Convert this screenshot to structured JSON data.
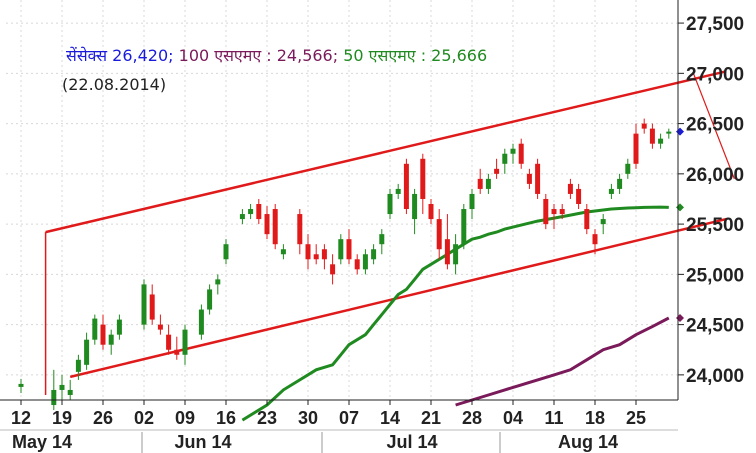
{
  "legend": {
    "sensex_label": "सेंसेक्स 26,420;",
    "ma100_label": "100 एसएमए : 24,566;",
    "ma50_label": "50 एसएमए : 25,666",
    "date": "(22.08.2014)"
  },
  "colors": {
    "sensex": "#1a1adb",
    "ma100": "#7a1a5a",
    "ma50": "#1f8a1f",
    "up_candle": "#1f8a1f",
    "down_candle": "#e01a1a",
    "channel": "#e01a1a",
    "axis": "#222222"
  },
  "chart_data": {
    "type": "candlestick",
    "y_ticks": [
      "27,500",
      "27,000",
      "26,500",
      "26,000",
      "25,500",
      "25,000",
      "24,500",
      "24,000"
    ],
    "y_tick_values": [
      27500,
      27000,
      26500,
      26000,
      25500,
      25000,
      24500,
      24000
    ],
    "ylim": [
      23750,
      27650
    ],
    "x_ticks": [
      "12",
      "19",
      "26",
      "02",
      "09",
      "16",
      "23",
      "30",
      "07",
      "14",
      "21",
      "28",
      "04",
      "11",
      "18",
      "25"
    ],
    "month_labels": [
      "May 14",
      "Jun 14",
      "Jul 14",
      "Aug 14"
    ],
    "price_markers": [
      {
        "series": "sensex",
        "value": 26420
      },
      {
        "series": "ma50",
        "value": 25666
      },
      {
        "series": "ma100",
        "value": 24566
      }
    ],
    "candles": [
      [
        0,
        23880,
        23960,
        23820,
        23910
      ],
      [
        4,
        23700,
        24050,
        23650,
        23850
      ],
      [
        5,
        23850,
        24000,
        23750,
        23900
      ],
      [
        6,
        23800,
        23950,
        23750,
        23850
      ],
      [
        7,
        24030,
        24200,
        23950,
        24150
      ],
      [
        8,
        24100,
        24420,
        24050,
        24350
      ],
      [
        9,
        24350,
        24600,
        24300,
        24560
      ],
      [
        10,
        24500,
        24600,
        24250,
        24300
      ],
      [
        11,
        24300,
        24450,
        24200,
        24400
      ],
      [
        12,
        24400,
        24600,
        24350,
        24550
      ],
      [
        15,
        24500,
        24950,
        24450,
        24900
      ],
      [
        16,
        24800,
        24900,
        24500,
        24550
      ],
      [
        17,
        24500,
        24600,
        24400,
        24450
      ],
      [
        18,
        24400,
        24500,
        24200,
        24250
      ],
      [
        19,
        24250,
        24380,
        24150,
        24200
      ],
      [
        20,
        24200,
        24500,
        24100,
        24450
      ],
      [
        22,
        24400,
        24700,
        24350,
        24650
      ],
      [
        23,
        24650,
        24900,
        24600,
        24850
      ],
      [
        24,
        24900,
        25000,
        24800,
        24950
      ],
      [
        25,
        25150,
        25350,
        25100,
        25300
      ],
      [
        27,
        25550,
        25650,
        25500,
        25600
      ],
      [
        28,
        25600,
        25700,
        25550,
        25650
      ],
      [
        29,
        25700,
        25750,
        25500,
        25550
      ],
      [
        30,
        25600,
        25680,
        25350,
        25400
      ],
      [
        31,
        25650,
        25700,
        25250,
        25300
      ],
      [
        32,
        25200,
        25300,
        25150,
        25250
      ],
      [
        34,
        25600,
        25650,
        25200,
        25300
      ],
      [
        35,
        25300,
        25400,
        25050,
        25150
      ],
      [
        36,
        25200,
        25300,
        25100,
        25150
      ],
      [
        37,
        25250,
        25300,
        25050,
        25150
      ],
      [
        38,
        25100,
        25200,
        24900,
        25000
      ],
      [
        39,
        25150,
        25400,
        25100,
        25350
      ],
      [
        40,
        25350,
        25450,
        25100,
        25150
      ],
      [
        41,
        25150,
        25200,
        25000,
        25050
      ],
      [
        42,
        25050,
        25250,
        25000,
        25200
      ],
      [
        43,
        25150,
        25300,
        25100,
        25250
      ],
      [
        44,
        25300,
        25450,
        25200,
        25400
      ],
      [
        45,
        25600,
        25850,
        25550,
        25800
      ],
      [
        46,
        25800,
        25900,
        25750,
        25850
      ],
      [
        47,
        26100,
        26150,
        25600,
        25650
      ],
      [
        48,
        25550,
        25850,
        25400,
        25800
      ],
      [
        49,
        26150,
        26200,
        25600,
        25750
      ],
      [
        50,
        25700,
        25750,
        25500,
        25550
      ],
      [
        51,
        25550,
        25650,
        25150,
        25250
      ],
      [
        52,
        25350,
        25600,
        25050,
        25100
      ],
      [
        53,
        25100,
        25400,
        25000,
        25300
      ],
      [
        54,
        25300,
        25700,
        25250,
        25650
      ],
      [
        55,
        25650,
        25850,
        25550,
        25800
      ],
      [
        56,
        25950,
        26050,
        25800,
        25850
      ],
      [
        57,
        25850,
        26000,
        25800,
        25950
      ],
      [
        58,
        26050,
        26150,
        25950,
        26000
      ],
      [
        59,
        26100,
        26250,
        26000,
        26200
      ],
      [
        60,
        26200,
        26300,
        26100,
        26250
      ],
      [
        61,
        26300,
        26350,
        26050,
        26100
      ],
      [
        62,
        26000,
        26050,
        25850,
        25900
      ],
      [
        63,
        26100,
        26150,
        25750,
        25800
      ],
      [
        64,
        25750,
        25800,
        25450,
        25500
      ],
      [
        65,
        25650,
        25700,
        25450,
        25600
      ],
      [
        66,
        25650,
        25700,
        25550,
        25600
      ],
      [
        67,
        25900,
        25950,
        25750,
        25800
      ],
      [
        68,
        25850,
        25900,
        25650,
        25700
      ],
      [
        69,
        25650,
        25700,
        25400,
        25450
      ],
      [
        70,
        25400,
        25450,
        25200,
        25300
      ],
      [
        71,
        25500,
        25600,
        25400,
        25550
      ],
      [
        72,
        25800,
        25900,
        25750,
        25850
      ],
      [
        73,
        25850,
        26000,
        25800,
        25950
      ],
      [
        74,
        26000,
        26150,
        25950,
        26100
      ],
      [
        75,
        26400,
        26500,
        26050,
        26100
      ],
      [
        76,
        26500,
        26550,
        26400,
        26450
      ],
      [
        77,
        26450,
        26500,
        26250,
        26300
      ],
      [
        78,
        26300,
        26400,
        26250,
        26350
      ],
      [
        79,
        26400,
        26450,
        26350,
        26420
      ]
    ],
    "ma50": [
      [
        27,
        23550
      ],
      [
        30,
        23700
      ],
      [
        32,
        23850
      ],
      [
        34,
        23950
      ],
      [
        36,
        24050
      ],
      [
        38,
        24100
      ],
      [
        39,
        24200
      ],
      [
        40,
        24300
      ],
      [
        41,
        24350
      ],
      [
        42,
        24400
      ],
      [
        43,
        24500
      ],
      [
        44,
        24600
      ],
      [
        45,
        24700
      ],
      [
        46,
        24800
      ],
      [
        47,
        24850
      ],
      [
        48,
        24950
      ],
      [
        49,
        25050
      ],
      [
        50,
        25100
      ],
      [
        51,
        25150
      ],
      [
        52,
        25200
      ],
      [
        53,
        25250
      ],
      [
        54,
        25300
      ],
      [
        55,
        25350
      ],
      [
        56,
        25370
      ],
      [
        57,
        25400
      ],
      [
        58,
        25420
      ],
      [
        59,
        25450
      ],
      [
        60,
        25470
      ],
      [
        61,
        25490
      ],
      [
        62,
        25510
      ],
      [
        63,
        25530
      ],
      [
        64,
        25545
      ],
      [
        65,
        25560
      ],
      [
        66,
        25575
      ],
      [
        67,
        25590
      ],
      [
        68,
        25605
      ],
      [
        69,
        25620
      ],
      [
        70,
        25630
      ],
      [
        71,
        25640
      ],
      [
        72,
        25650
      ],
      [
        73,
        25655
      ],
      [
        74,
        25660
      ],
      [
        75,
        25663
      ],
      [
        76,
        25666
      ],
      [
        77,
        25668
      ],
      [
        78,
        25669
      ],
      [
        79,
        25666
      ]
    ],
    "ma100": [
      [
        53,
        23700
      ],
      [
        55,
        23750
      ],
      [
        57,
        23800
      ],
      [
        59,
        23850
      ],
      [
        61,
        23900
      ],
      [
        63,
        23950
      ],
      [
        65,
        24000
      ],
      [
        67,
        24050
      ],
      [
        69,
        24150
      ],
      [
        71,
        24250
      ],
      [
        73,
        24300
      ],
      [
        75,
        24400
      ],
      [
        77,
        24480
      ],
      [
        79,
        24566
      ]
    ],
    "channel": {
      "upper_start": [
        3,
        25420
      ],
      "upper_end": [
        86,
        27020
      ],
      "lower_start": [
        6,
        23980
      ],
      "lower_end": [
        86,
        25550
      ],
      "projection_start": [
        82,
        27000
      ],
      "projection_end": [
        87,
        25950
      ]
    }
  }
}
